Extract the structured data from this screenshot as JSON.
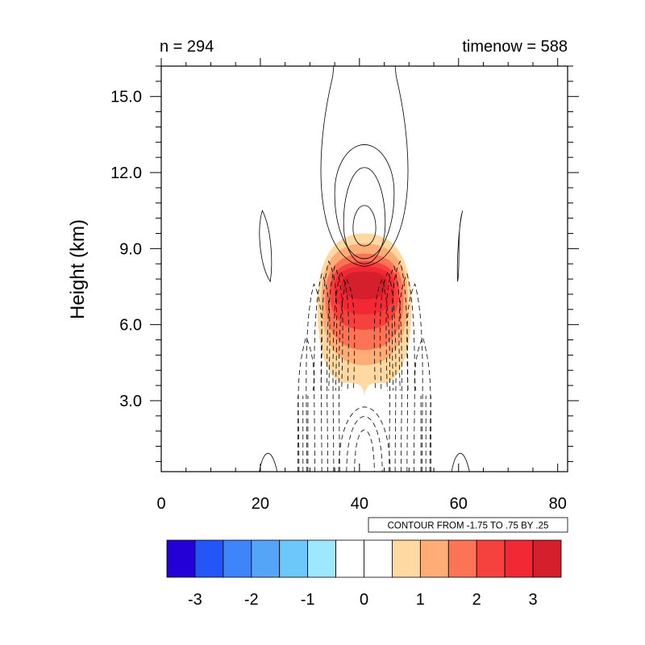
{
  "header": {
    "left_label": "n = 294",
    "right_label": "timenow = 588"
  },
  "chart_data": {
    "type": "contour",
    "title": "",
    "xlabel": "",
    "ylabel": "Height (km)",
    "xlim": [
      0,
      82
    ],
    "ylim": [
      0.2,
      16.2
    ],
    "x_ticks": [
      0,
      20,
      40,
      60,
      80
    ],
    "x_tick_labels": [
      "0",
      "20",
      "40",
      "60",
      "80"
    ],
    "y_ticks": [
      3,
      6,
      9,
      12,
      15
    ],
    "y_tick_labels": [
      "3.0",
      "6.0",
      "9.0",
      "12.0",
      "15.0"
    ],
    "shaded_field": {
      "center_x": 41,
      "peak_height_km": 7.6,
      "x_extent": [
        31.5,
        50.5
      ],
      "height_extent_km": [
        3.2,
        9.6
      ],
      "max_value": 3.25
    },
    "line_contours": {
      "info_label": "CONTOUR FROM -1.75 TO .75 BY .25",
      "min": -1.75,
      "max": 0.75,
      "interval": 0.25,
      "negative_style": "dashed",
      "positive_style": "solid"
    },
    "colorbar": {
      "colors": [
        "#2500d6",
        "#2455f9",
        "#3d85f8",
        "#54a4f8",
        "#6cc7fb",
        "#9ee8ff",
        "#ffffff",
        "#ffffff",
        "#ffd9a1",
        "#ffac77",
        "#fd7356",
        "#f5423f",
        "#f22935",
        "#d51f2c"
      ],
      "tick_values": [
        -3,
        -2,
        -1,
        0,
        1,
        2,
        3
      ],
      "tick_labels": [
        "-3",
        "-2",
        "-1",
        "0",
        "1",
        "2",
        "3"
      ],
      "range": [
        -3.5,
        3.5
      ]
    }
  }
}
